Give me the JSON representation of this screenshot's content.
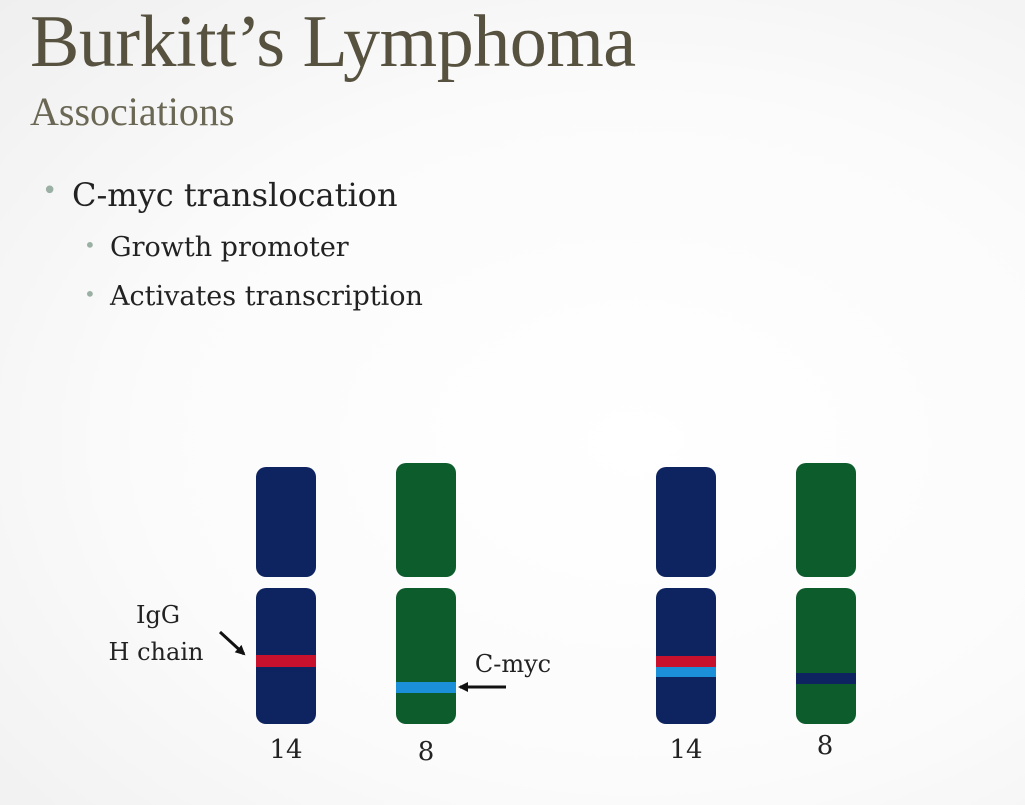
{
  "slide": {
    "title": "Burkitt’s Lymphoma",
    "subtitle": "Associations",
    "bullets": [
      {
        "level": 1,
        "text": "C-myc translocation"
      },
      {
        "level": 2,
        "text": "Growth promoter"
      },
      {
        "level": 2,
        "text": "Activates transcription"
      }
    ]
  },
  "diagram": {
    "colors": {
      "chromosome_14": "#0d2460",
      "chromosome_8": "#0d5c2c",
      "igg_band": "#c8112c",
      "cmyc_band": "#1b8fd8",
      "arrow": "#111111"
    },
    "labels": {
      "igg": [
        "IgG",
        "H chain"
      ],
      "cmyc": "C-myc",
      "chr14_before": "14",
      "chr8_before": "8",
      "chr14_after": "14",
      "chr8_after": "8"
    }
  }
}
